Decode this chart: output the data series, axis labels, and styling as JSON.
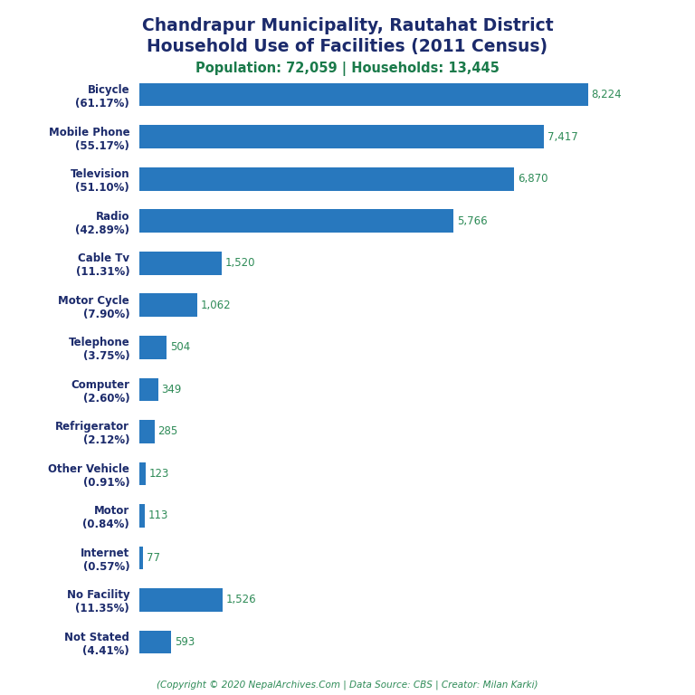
{
  "title_line1": "Chandrapur Municipality, Rautahat District",
  "title_line2": "Household Use of Facilities (2011 Census)",
  "subtitle": "Population: 72,059 | Households: 13,445",
  "categories": [
    "Bicycle\n(61.17%)",
    "Mobile Phone\n(55.17%)",
    "Television\n(51.10%)",
    "Radio\n(42.89%)",
    "Cable Tv\n(11.31%)",
    "Motor Cycle\n(7.90%)",
    "Telephone\n(3.75%)",
    "Computer\n(2.60%)",
    "Refrigerator\n(2.12%)",
    "Other Vehicle\n(0.91%)",
    "Motor\n(0.84%)",
    "Internet\n(0.57%)",
    "No Facility\n(11.35%)",
    "Not Stated\n(4.41%)"
  ],
  "values": [
    8224,
    7417,
    6870,
    5766,
    1520,
    1062,
    504,
    349,
    285,
    123,
    113,
    77,
    1526,
    593
  ],
  "value_labels": [
    "8,224",
    "7,417",
    "6,870",
    "5,766",
    "1,520",
    "1,062",
    "504",
    "349",
    "285",
    "123",
    "113",
    "77",
    "1,526",
    "593"
  ],
  "bar_color": "#2878BE",
  "title_color": "#1B2A6B",
  "subtitle_color": "#1A7A4A",
  "value_label_color": "#2E8B57",
  "ylabel_color": "#1B2A6B",
  "copyright_color": "#2E8B57",
  "background_color": "#FFFFFF",
  "copyright_text": "(Copyright © 2020 NepalArchives.Com | Data Source: CBS | Creator: Milan Karki)",
  "figsize": [
    7.68,
    7.68
  ],
  "dpi": 100,
  "bar_height": 0.55
}
